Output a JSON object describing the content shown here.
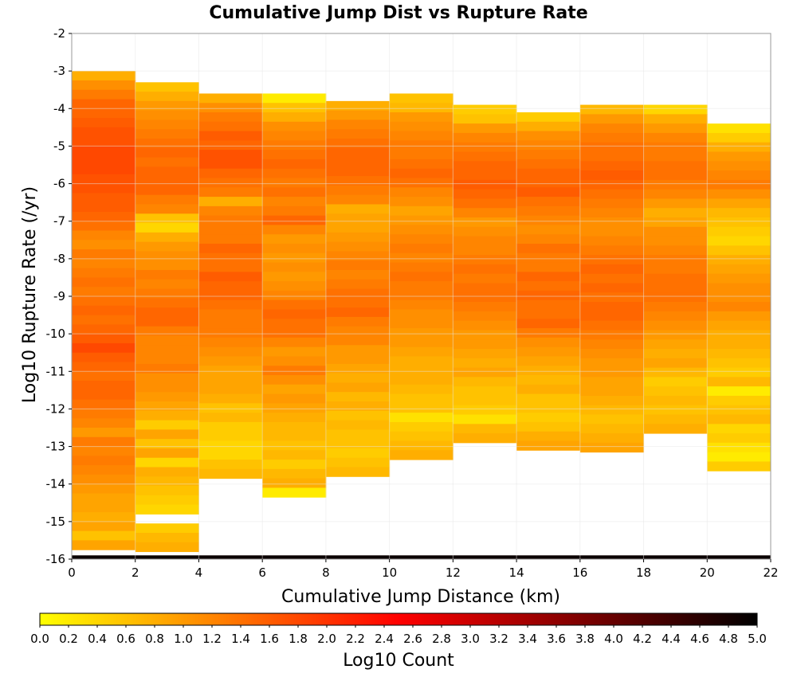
{
  "chart_data": {
    "type": "heatmap",
    "title": "Cumulative Jump Dist vs Rupture Rate",
    "xlabel": "Cumulative Jump Distance (km)",
    "ylabel": "Log10 Rupture Rate (/yr)",
    "xlim": [
      0,
      22
    ],
    "ylim": [
      -16,
      -2
    ],
    "x_bin_width": 2,
    "y_bin_width": 0.25,
    "x_ticks": [
      "0",
      "2",
      "4",
      "6",
      "8",
      "10",
      "12",
      "14",
      "16",
      "18",
      "20",
      "22"
    ],
    "y_ticks": [
      "-2",
      "-3",
      "-4",
      "-5",
      "-6",
      "-7",
      "-8",
      "-9",
      "-10",
      "-11",
      "-12",
      "-13",
      "-14",
      "-15",
      "-16"
    ],
    "grid": true,
    "colorbar": {
      "label": "Log10 Count",
      "range": [
        0.0,
        5.0
      ],
      "ticks": [
        "0.0",
        "0.2",
        "0.4",
        "0.6",
        "0.8",
        "1.0",
        "1.2",
        "1.4",
        "1.6",
        "1.8",
        "2.0",
        "2.2",
        "2.4",
        "2.6",
        "2.8",
        "3.0",
        "3.2",
        "3.4",
        "3.6",
        "3.8",
        "4.0",
        "4.2",
        "4.4",
        "4.6",
        "4.8",
        "5.0"
      ],
      "colors": [
        "#ffff00",
        "#ff8000",
        "#ff0000",
        "#800000",
        "#000000"
      ]
    },
    "columns": [
      {
        "x_range": [
          0,
          2
        ],
        "top": -3.0,
        "values": [
          0.8,
          1.1,
          1.3,
          1.5,
          1.5,
          1.6,
          1.7,
          1.7,
          1.8,
          1.8,
          1.8,
          1.7,
          1.7,
          1.6,
          1.6,
          1.5,
          1.4,
          1.2,
          1.1,
          1.3,
          1.2,
          1.3,
          1.4,
          1.3,
          1.4,
          1.5,
          1.4,
          1.5,
          1.6,
          1.8,
          1.6,
          1.5,
          1.4,
          1.5,
          1.5,
          1.4,
          1.3,
          1.2,
          1.0,
          1.3,
          1.2,
          1.3,
          1.2,
          1.1,
          1.0,
          0.9,
          0.9,
          0.8,
          0.9,
          0.6,
          0.9
        ]
      },
      {
        "x_range": [
          2,
          4
        ],
        "top": -3.3,
        "values": [
          0.6,
          0.8,
          1.0,
          1.1,
          1.2,
          1.3,
          1.4,
          1.5,
          1.4,
          1.5,
          1.5,
          1.5,
          1.3,
          1.2,
          0.6,
          0.4,
          0.8,
          1.0,
          1.1,
          1.1,
          1.3,
          1.2,
          1.3,
          1.4,
          1.5,
          1.5,
          1.3,
          1.2,
          1.2,
          1.2,
          1.3,
          1.1,
          1.1,
          1.0,
          0.9,
          0.8,
          0.5,
          0.9,
          0.6,
          0.9,
          0.4,
          0.8,
          0.7,
          0.6,
          0.5,
          0.4,
          null,
          0.5,
          0.7,
          0.8
        ]
      },
      {
        "x_range": [
          4,
          6
        ],
        "top": -3.6,
        "values": [
          0.8,
          1.1,
          1.3,
          1.4,
          1.6,
          1.5,
          1.7,
          1.7,
          1.5,
          1.4,
          1.3,
          0.8,
          1.2,
          1.3,
          1.3,
          1.3,
          1.5,
          1.4,
          1.4,
          1.6,
          1.5,
          1.5,
          1.4,
          1.3,
          1.3,
          1.3,
          1.2,
          1.1,
          1.0,
          0.9,
          0.9,
          0.9,
          0.8,
          0.6,
          0.7,
          0.5,
          0.5,
          0.4,
          0.4,
          0.6,
          0.7
        ]
      },
      {
        "x_range": [
          6,
          8
        ],
        "top": -3.6,
        "values": [
          0.2,
          0.6,
          0.8,
          1.1,
          1.2,
          1.3,
          1.4,
          1.5,
          1.4,
          1.3,
          1.4,
          1.2,
          1.3,
          1.5,
          1.2,
          1.0,
          1.1,
          1.0,
          1.1,
          1.0,
          1.1,
          1.2,
          1.4,
          1.5,
          1.4,
          1.4,
          1.2,
          1.0,
          1.1,
          1.3,
          1.1,
          0.9,
          1.0,
          0.9,
          0.8,
          0.7,
          0.7,
          0.6,
          0.7,
          0.5,
          0.7,
          0.8,
          0.2
        ]
      },
      {
        "x_range": [
          8,
          10
        ],
        "top": -3.8,
        "values": [
          0.8,
          1.0,
          1.2,
          1.3,
          1.4,
          1.5,
          1.5,
          1.5,
          1.4,
          1.3,
          1.2,
          0.8,
          0.9,
          0.9,
          1.0,
          1.1,
          1.2,
          1.3,
          1.2,
          1.3,
          1.4,
          1.4,
          1.5,
          1.3,
          1.2,
          1.2,
          1.0,
          1.0,
          0.9,
          0.8,
          0.9,
          0.7,
          0.8,
          0.6,
          0.7,
          0.6,
          0.6,
          0.5,
          0.6,
          0.7
        ]
      },
      {
        "x_range": [
          10,
          12
        ],
        "top": -3.6,
        "values": [
          0.6,
          0.7,
          1.0,
          1.1,
          1.2,
          1.3,
          1.3,
          1.4,
          1.5,
          1.4,
          1.2,
          1.1,
          0.9,
          1.0,
          1.1,
          1.2,
          1.3,
          1.2,
          1.3,
          1.4,
          1.3,
          1.3,
          1.2,
          1.1,
          1.1,
          1.0,
          1.0,
          0.9,
          0.8,
          0.8,
          0.8,
          0.7,
          0.6,
          0.6,
          0.3,
          0.5,
          0.6,
          0.7,
          0.8
        ]
      },
      {
        "x_range": [
          12,
          14
        ],
        "top": -3.9,
        "values": [
          0.5,
          0.6,
          1.0,
          1.2,
          1.3,
          1.4,
          1.5,
          1.5,
          1.6,
          1.5,
          1.4,
          1.2,
          1.0,
          1.1,
          1.2,
          1.2,
          1.3,
          1.4,
          1.3,
          1.4,
          1.4,
          1.3,
          1.2,
          1.1,
          1.0,
          1.0,
          0.9,
          0.8,
          0.9,
          0.7,
          0.6,
          0.6,
          0.5,
          0.3,
          0.7,
          0.8
        ]
      },
      {
        "x_range": [
          14,
          16
        ],
        "top": -4.1,
        "values": [
          0.5,
          0.8,
          1.1,
          1.2,
          1.3,
          1.4,
          1.5,
          1.5,
          1.6,
          1.4,
          1.3,
          1.2,
          1.1,
          1.2,
          1.4,
          1.3,
          1.3,
          1.5,
          1.4,
          1.5,
          1.4,
          1.4,
          1.5,
          1.3,
          1.1,
          1.0,
          0.9,
          0.8,
          0.7,
          0.8,
          0.6,
          0.6,
          0.5,
          0.6,
          0.8,
          0.9
        ]
      },
      {
        "x_range": [
          16,
          18
        ],
        "top": -3.9,
        "values": [
          0.7,
          1.0,
          1.2,
          1.3,
          1.4,
          1.4,
          1.5,
          1.6,
          1.5,
          1.4,
          1.3,
          1.2,
          1.1,
          1.1,
          1.2,
          1.3,
          1.4,
          1.5,
          1.4,
          1.5,
          1.4,
          1.5,
          1.5,
          1.4,
          1.3,
          1.2,
          1.1,
          1.0,
          1.0,
          0.9,
          0.9,
          0.8,
          0.7,
          0.6,
          0.7,
          0.8,
          0.9
        ]
      },
      {
        "x_range": [
          18,
          20
        ],
        "top": -3.9,
        "values": [
          0.4,
          0.8,
          1.0,
          1.2,
          1.3,
          1.3,
          1.4,
          1.4,
          1.3,
          1.2,
          1.0,
          0.8,
          0.9,
          1.1,
          1.1,
          1.2,
          1.3,
          1.3,
          1.4,
          1.4,
          1.4,
          1.3,
          1.2,
          1.1,
          1.0,
          0.9,
          0.8,
          0.9,
          0.7,
          0.5,
          0.6,
          0.7,
          0.6,
          0.7,
          0.8
        ]
      },
      {
        "x_range": [
          20,
          22
        ],
        "top": -4.4,
        "values": [
          0.3,
          0.5,
          0.8,
          1.0,
          1.1,
          1.2,
          1.3,
          1.1,
          0.9,
          0.7,
          0.6,
          0.5,
          0.4,
          0.6,
          0.8,
          0.9,
          1.0,
          1.1,
          1.1,
          1.2,
          1.0,
          0.9,
          0.8,
          0.8,
          0.7,
          0.6,
          0.5,
          0.7,
          0.2,
          0.5,
          0.6,
          0.7,
          0.4,
          0.5,
          0.3,
          0.2,
          0.5
        ]
      }
    ],
    "bottom_row": {
      "y_range": [
        -16,
        -15.9
      ],
      "value": 4.9
    }
  }
}
